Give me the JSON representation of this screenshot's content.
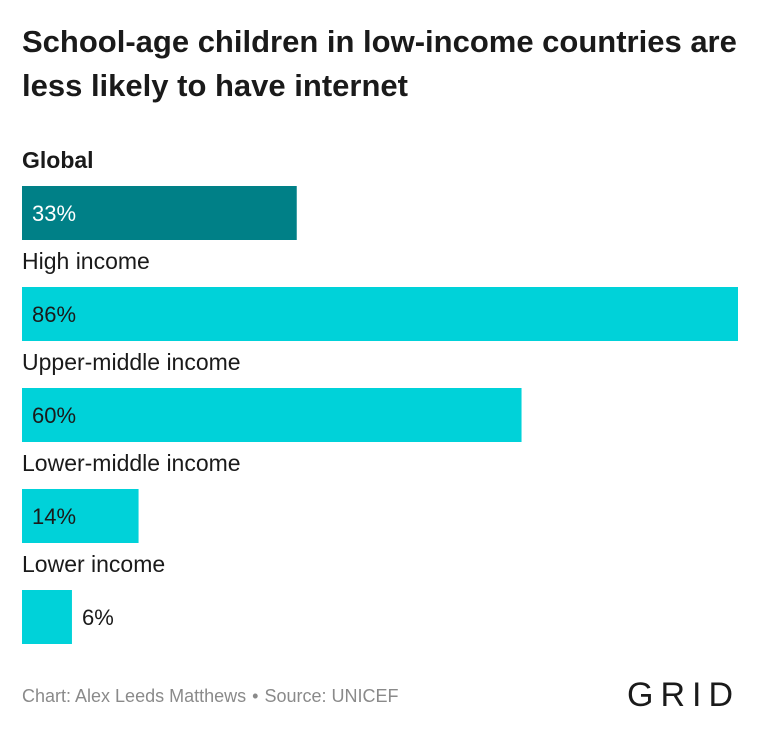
{
  "chart_data": {
    "type": "bar",
    "orientation": "horizontal",
    "title": "School-age children in low-income countries are less likely to have internet",
    "categories": [
      "Global",
      "High income",
      "Upper-middle income",
      "Lower-middle income",
      "Lower income"
    ],
    "values": [
      33,
      86,
      60,
      14,
      6
    ],
    "value_labels": [
      "33%",
      "86%",
      "60%",
      "14%",
      "6%"
    ],
    "xlim": [
      0,
      86
    ],
    "grid": false,
    "legend": "none",
    "highlight_category": "Global",
    "colors": {
      "highlight": "#008087",
      "default": "#00d2d9",
      "label_text": "#1a1a1a"
    }
  },
  "footer": {
    "credit": "Chart: Alex Leeds Matthews",
    "separator": "•",
    "source": "Source: UNICEF"
  },
  "logo": {
    "text": "GRID"
  }
}
